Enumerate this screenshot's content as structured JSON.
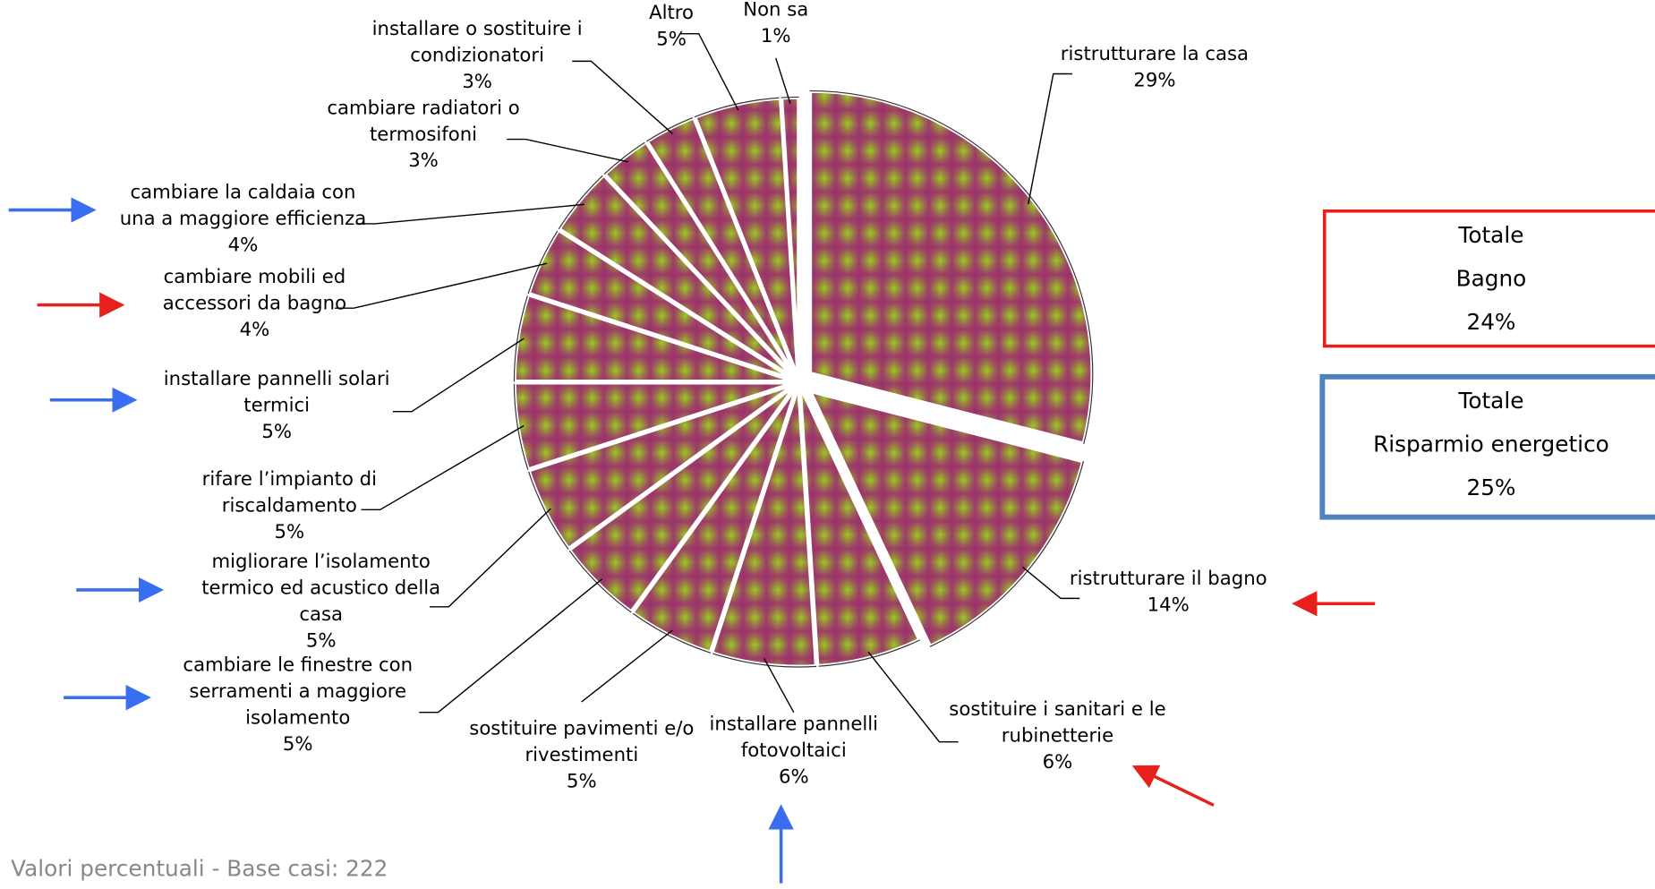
{
  "chart_data": {
    "type": "pie",
    "categories": [
      "ristrutturare la casa",
      "ristrutturare il bagno",
      "sostituire i sanitari e le\nrubinetterie",
      "installare pannelli\nfotovoltaici",
      "sostituire pavimenti e/o\nrivestimenti",
      "cambiare le finestre con\nserramenti a maggiore\nisolamento",
      "migliorare l’isolamento\ntermico ed acustico della\ncasa",
      "rifare l’impianto di\nriscaldamento",
      "installare pannelli solari\ntermici",
      "cambiare mobili ed\naccessori da bagno",
      "cambiare la caldaia con\nuna a maggiore efficienza",
      "cambiare radiatori o\ntermosifoni",
      "installare o sostituire i\ncondizionatori",
      "Altro",
      "Non sa"
    ],
    "values": [
      29,
      14,
      6,
      6,
      5,
      5,
      5,
      5,
      5,
      4,
      4,
      3,
      3,
      5,
      1
    ],
    "value_labels": [
      "29%",
      "14%",
      "6%",
      "6%",
      "5%",
      "5%",
      "5%",
      "5%",
      "5%",
      "4%",
      "4%",
      "3%",
      "3%",
      "5%",
      "1%"
    ],
    "boxes": [
      {
        "lines": [
          "Totale",
          "Bagno",
          "24%"
        ],
        "color": "#e8201c"
      },
      {
        "lines": [
          "Totale",
          "Risparmio energetico",
          "25%"
        ],
        "color": "#4f81bd"
      }
    ],
    "footnote": "Valori percentuali - Base casi: 222"
  }
}
